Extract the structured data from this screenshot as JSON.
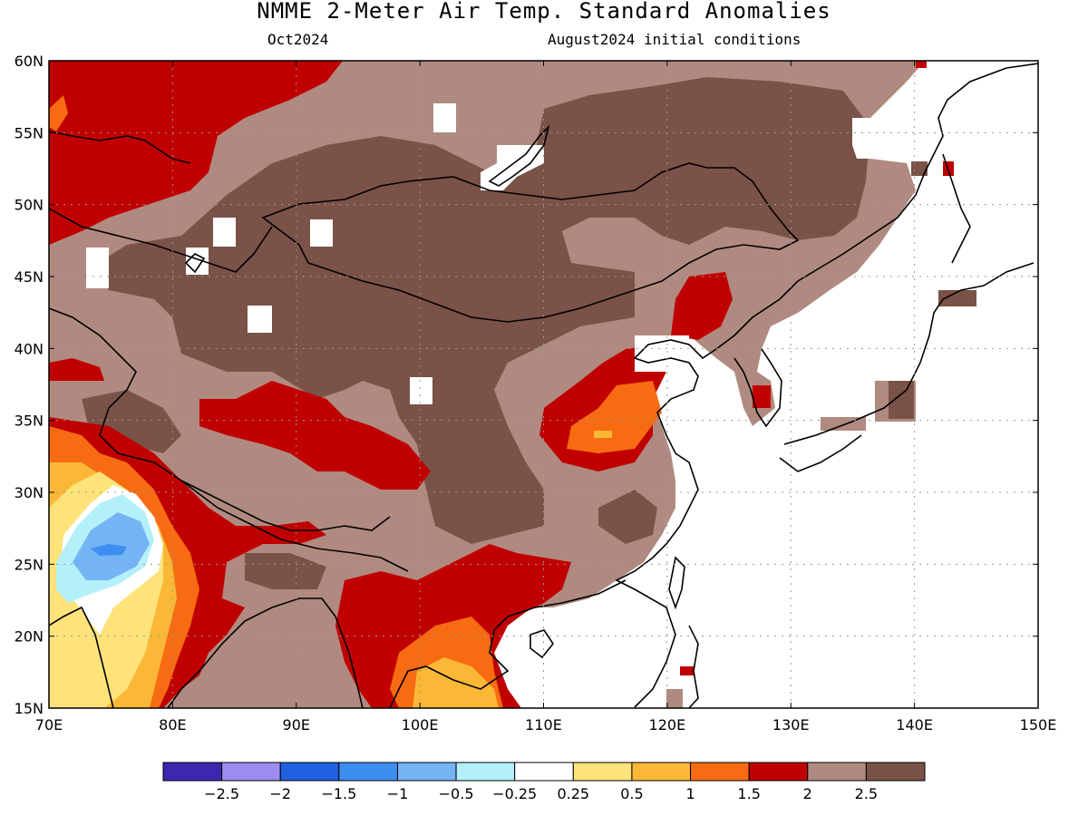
{
  "title": "NMME 2-Meter Air Temp. Standard Anomalies",
  "subtitle_left": "Oct2024",
  "subtitle_right": "August2024 initial conditions",
  "axes": {
    "lon_labels": [
      "70E",
      "80E",
      "90E",
      "100E",
      "110E",
      "120E",
      "130E",
      "140E",
      "150E"
    ],
    "lat_labels": [
      "60N",
      "55N",
      "50N",
      "45N",
      "40N",
      "35N",
      "30N",
      "25N",
      "20N",
      "15N"
    ],
    "lon_range": [
      70,
      150
    ],
    "lat_range": [
      15,
      60
    ],
    "grid": "dotted"
  },
  "colorbar": {
    "labels": [
      "-2.5",
      "-2",
      "-1.5",
      "-1",
      "-0.5",
      "-0.25",
      "0.25",
      "0.5",
      "1",
      "1.5",
      "2",
      "2.5"
    ],
    "colors": [
      "#3b27b0",
      "#9b8ef0",
      "#2160e0",
      "#3c8ff0",
      "#74b4f5",
      "#b3f0fa",
      "#ffffff",
      "#fde37a",
      "#fbb836",
      "#f76b12",
      "#c00000",
      "#b08a80",
      "#7a5248"
    ]
  },
  "colors": {
    "land_base": "#b08a80",
    "dark_brown": "#7a5248",
    "red": "#c00000",
    "orange": "#f76b12",
    "light_orange": "#fbb836",
    "yellow": "#fde37a",
    "pale_blue": "#b3f0fa",
    "mid_blue": "#74b4f5",
    "blue": "#3c8ff0"
  }
}
